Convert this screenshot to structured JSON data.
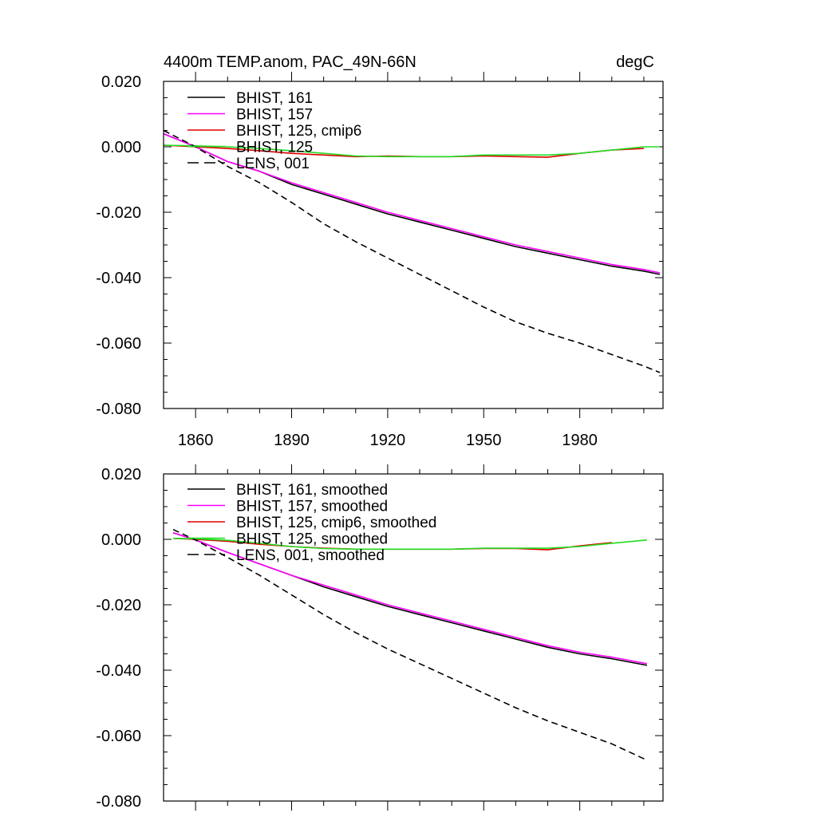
{
  "chart_data": [
    {
      "type": "line",
      "title": "4400m TEMP.anom, PAC_49N-66N",
      "units": "degC",
      "xlim": [
        1850,
        2006
      ],
      "ylim": [
        -0.08,
        0.02
      ],
      "y_ticks": [
        "0.020",
        "0.000",
        "-0.020",
        "-0.040",
        "-0.060",
        "-0.080"
      ],
      "x_ticks": [
        "1860",
        "1890",
        "1920",
        "1950",
        "1980"
      ],
      "x": [
        1850,
        1860,
        1870,
        1880,
        1890,
        1900,
        1910,
        1920,
        1930,
        1940,
        1950,
        1960,
        1970,
        1980,
        1990,
        2000,
        2005
      ],
      "series": [
        {
          "name": "BHIST, 161",
          "color": "#000000",
          "dash": "solid",
          "values": [
            0.004,
            0.0,
            -0.0045,
            -0.0075,
            -0.0115,
            -0.0145,
            -0.0175,
            -0.0205,
            -0.023,
            -0.0255,
            -0.028,
            -0.0305,
            -0.0325,
            -0.0345,
            -0.0365,
            -0.038,
            -0.039
          ]
        },
        {
          "name": "BHIST, 157",
          "color": "#ff00ff",
          "dash": "solid",
          "values": [
            0.004,
            0.0,
            -0.0045,
            -0.0075,
            -0.011,
            -0.014,
            -0.017,
            -0.02,
            -0.0225,
            -0.025,
            -0.0275,
            -0.03,
            -0.032,
            -0.034,
            -0.036,
            -0.0375,
            -0.0385
          ]
        },
        {
          "name": "BHIST, 125, cmip6",
          "color": "#e00000",
          "dash": "solid",
          "values": [
            0.0005,
            0.0,
            -0.0005,
            -0.0012,
            -0.002,
            -0.0025,
            -0.003,
            -0.0028,
            -0.003,
            -0.003,
            -0.0028,
            -0.003,
            -0.0032,
            -0.002,
            -0.001,
            -0.0005,
            null
          ]
        },
        {
          "name": "BHIST, 125",
          "color": "#22dd22",
          "dash": "solid",
          "values": [
            0.0005,
            0.0003,
            0.0,
            -0.0005,
            -0.0012,
            -0.002,
            -0.0028,
            -0.003,
            -0.003,
            -0.003,
            -0.0025,
            -0.0025,
            -0.0025,
            -0.002,
            -0.001,
            0.0,
            0.0
          ]
        },
        {
          "name": "LENS, 001",
          "color": "#000000",
          "dash": "dashed",
          "values": [
            0.005,
            0.0,
            -0.006,
            -0.011,
            -0.017,
            -0.0235,
            -0.029,
            -0.034,
            -0.039,
            -0.044,
            -0.049,
            -0.0535,
            -0.057,
            -0.06,
            -0.0635,
            -0.067,
            -0.069
          ]
        }
      ]
    },
    {
      "type": "line",
      "title": "",
      "units": "",
      "xlim": [
        1850,
        2006
      ],
      "ylim": [
        -0.08,
        0.02
      ],
      "y_ticks": [
        "0.020",
        "0.000",
        "-0.020",
        "-0.040",
        "-0.060",
        "-0.080"
      ],
      "x_ticks": [],
      "x": [
        1853,
        1860,
        1870,
        1880,
        1890,
        1900,
        1910,
        1920,
        1930,
        1940,
        1950,
        1960,
        1970,
        1980,
        1990,
        2001
      ],
      "series": [
        {
          "name": "BHIST, 161, smoothed",
          "color": "#000000",
          "dash": "solid",
          "values": [
            0.002,
            -0.0002,
            -0.004,
            -0.0075,
            -0.011,
            -0.0145,
            -0.0175,
            -0.0205,
            -0.023,
            -0.0255,
            -0.028,
            -0.0305,
            -0.033,
            -0.035,
            -0.0365,
            -0.0385
          ]
        },
        {
          "name": "BHIST, 157, smoothed",
          "color": "#ff00ff",
          "dash": "solid",
          "values": [
            0.002,
            -0.0002,
            -0.004,
            -0.0075,
            -0.011,
            -0.014,
            -0.017,
            -0.02,
            -0.0225,
            -0.025,
            -0.0275,
            -0.03,
            -0.0325,
            -0.0345,
            -0.036,
            -0.038
          ]
        },
        {
          "name": "BHIST, 125, cmip6, smoothed",
          "color": "#e00000",
          "dash": "solid",
          "values": [
            0.0003,
            0.0,
            -0.0006,
            -0.0015,
            -0.0022,
            -0.0027,
            -0.003,
            -0.003,
            -0.003,
            -0.003,
            -0.0028,
            -0.0028,
            -0.0032,
            -0.002,
            -0.001,
            null
          ]
        },
        {
          "name": "BHIST, 125, smoothed",
          "color": "#22dd22",
          "dash": "solid",
          "values": [
            0.0003,
            0.0002,
            -0.0003,
            -0.0012,
            -0.0022,
            -0.0028,
            -0.003,
            -0.003,
            -0.003,
            -0.003,
            -0.0027,
            -0.0027,
            -0.0027,
            -0.0022,
            -0.0012,
            -0.0002
          ]
        },
        {
          "name": "LENS, 001, smoothed",
          "color": "#000000",
          "dash": "dashed",
          "values": [
            0.003,
            -0.0002,
            -0.0055,
            -0.011,
            -0.017,
            -0.023,
            -0.0285,
            -0.0335,
            -0.038,
            -0.0425,
            -0.047,
            -0.0515,
            -0.0555,
            -0.059,
            -0.0625,
            -0.0675
          ]
        }
      ]
    }
  ]
}
